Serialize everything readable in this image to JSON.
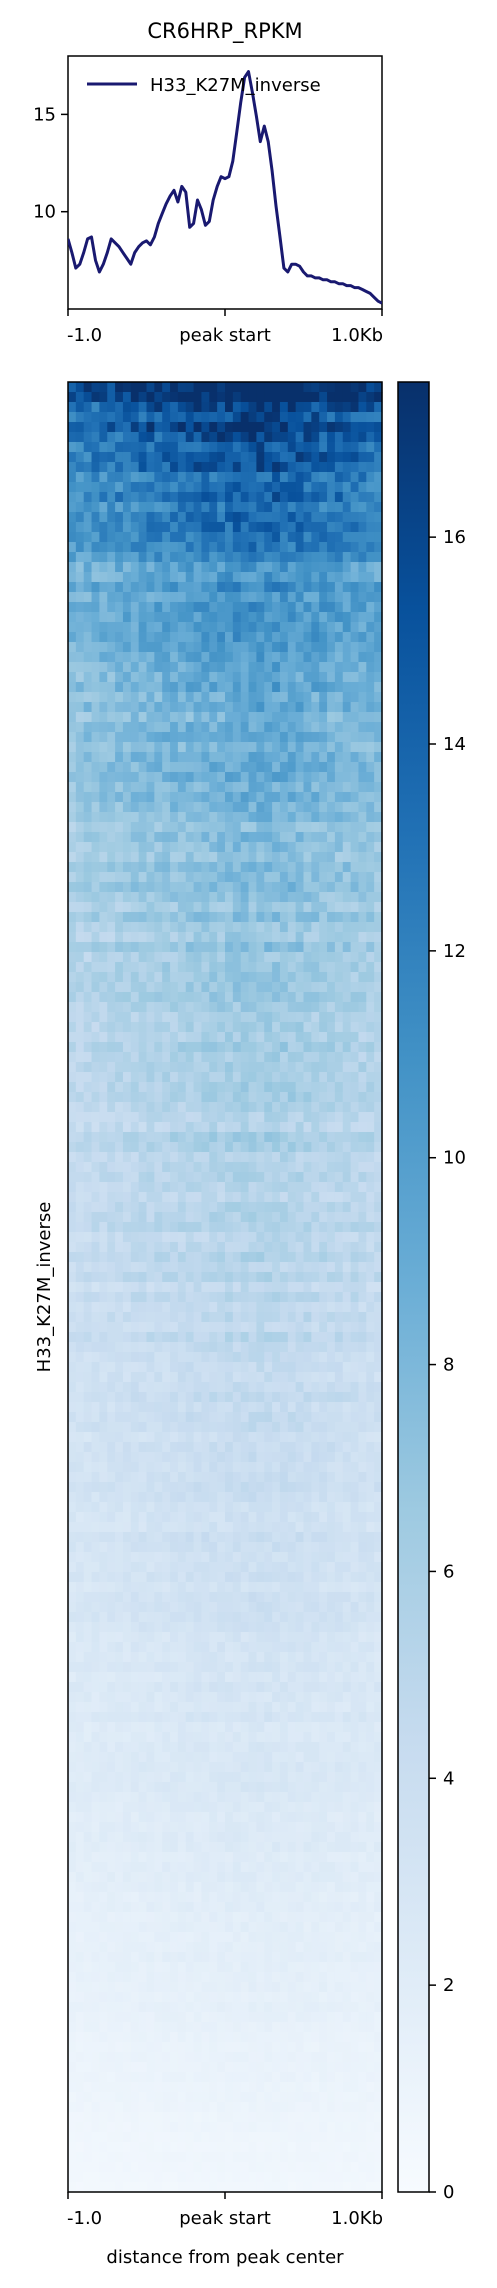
{
  "chart_data": [
    {
      "type": "line",
      "title": "CR6HRP_RPKM",
      "x_ticks": [
        "-1.0",
        "peak start",
        "1.0Kb"
      ],
      "y_ticks": [
        10,
        15
      ],
      "ylim": [
        5.0,
        18.0
      ],
      "legend": "top-left",
      "series": [
        {
          "name": "H33_K27M_inverse",
          "color": "#191970",
          "x": [
            -1000,
            -975,
            -950,
            -925,
            -900,
            -875,
            -850,
            -825,
            -800,
            -775,
            -750,
            -725,
            -700,
            -675,
            -650,
            -625,
            -600,
            -575,
            -550,
            -525,
            -500,
            -475,
            -450,
            -425,
            -400,
            -375,
            -350,
            -325,
            -300,
            -275,
            -250,
            -225,
            -200,
            -175,
            -150,
            -125,
            -100,
            -75,
            -50,
            -25,
            0,
            25,
            50,
            75,
            100,
            125,
            150,
            175,
            200,
            225,
            250,
            275,
            300,
            325,
            350,
            375,
            400,
            425,
            450,
            475,
            500,
            525,
            550,
            575,
            600,
            625,
            650,
            675,
            700,
            725,
            750,
            775,
            800,
            825,
            850,
            875,
            900,
            925,
            950,
            975,
            1000
          ],
          "values": [
            8.6,
            7.9,
            7.1,
            7.3,
            7.9,
            8.6,
            8.7,
            7.5,
            6.9,
            7.3,
            7.9,
            8.6,
            8.4,
            8.2,
            7.9,
            7.6,
            7.3,
            7.9,
            8.2,
            8.4,
            8.5,
            8.3,
            8.7,
            9.4,
            9.9,
            10.4,
            10.8,
            11.1,
            10.5,
            11.3,
            11.0,
            9.2,
            9.4,
            10.6,
            10.1,
            9.3,
            9.5,
            10.6,
            11.3,
            11.8,
            11.7,
            11.8,
            12.6,
            14.1,
            15.6,
            16.9,
            17.2,
            16.1,
            14.9,
            13.6,
            14.4,
            13.6,
            12.1,
            10.3,
            8.7,
            7.1,
            6.9,
            7.3,
            7.3,
            7.2,
            6.9,
            6.7,
            6.7,
            6.6,
            6.6,
            6.5,
            6.5,
            6.4,
            6.4,
            6.3,
            6.3,
            6.2,
            6.2,
            6.1,
            6.1,
            6.0,
            5.9,
            5.8,
            5.6,
            5.4,
            5.3
          ]
        }
      ]
    },
    {
      "type": "heatmap",
      "ylabel": "H33_K27M_inverse",
      "xlabel": "distance from peak center",
      "x_ticks": [
        "-1.0",
        "peak start",
        "1.0Kb"
      ],
      "colormap": "Blues",
      "colors": [
        "#f7fbff",
        "#deebf7",
        "#c6dbef",
        "#9ecae1",
        "#6baed6",
        "#4292c6",
        "#2171b5",
        "#08519c",
        "#08306b"
      ],
      "value_range": [
        0,
        17.5
      ],
      "colorbar_ticks": [
        0,
        2,
        4,
        6,
        8,
        10,
        12,
        14,
        16
      ],
      "rows_sorted": "descending",
      "row_profile_top_to_bottom": [
        17.0,
        13.0,
        10.5,
        9.0,
        8.0,
        7.2,
        6.5,
        6.0,
        5.5,
        5.0,
        4.6,
        4.2,
        3.8,
        3.4,
        3.0,
        2.6,
        2.2,
        1.8,
        1.4,
        1.0,
        0.5
      ],
      "column_profile_left_to_right": [
        0.85,
        0.9,
        0.95,
        1.0,
        1.05,
        1.1,
        1.1,
        1.05,
        1.0,
        0.95
      ]
    }
  ]
}
